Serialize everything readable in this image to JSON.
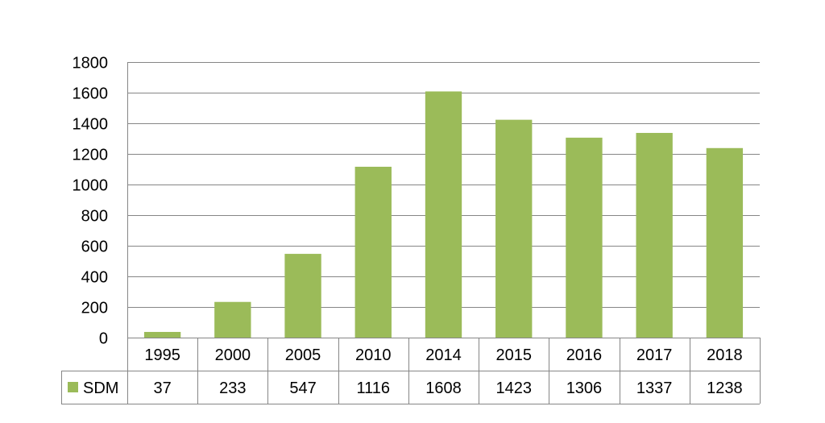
{
  "chart_data": {
    "type": "bar",
    "title": "",
    "xlabel": "",
    "ylabel": "",
    "categories": [
      "1995",
      "2000",
      "2005",
      "2010",
      "2014",
      "2015",
      "2016",
      "2017",
      "2018"
    ],
    "series": [
      {
        "name": "SDM",
        "values": [
          37,
          233,
          547,
          1116,
          1608,
          1423,
          1306,
          1337,
          1238
        ],
        "color": "#9BBB59"
      }
    ],
    "ylim": [
      0,
      1800
    ],
    "yticks": [
      "0",
      "200",
      "400",
      "600",
      "800",
      "1000",
      "1200",
      "1400",
      "1600",
      "1800"
    ],
    "grid": true,
    "legend": "data-table"
  }
}
